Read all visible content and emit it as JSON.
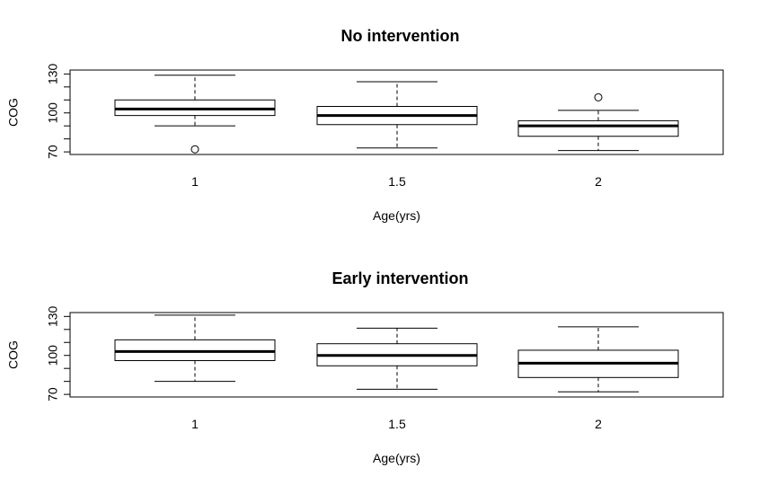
{
  "chart_data": [
    {
      "type": "boxplot",
      "title": "No intervention",
      "xlabel": "Age(yrs)",
      "ylabel": "COG",
      "ylim": [
        70,
        130
      ],
      "yticks": [
        70,
        80,
        90,
        100,
        110,
        120,
        130
      ],
      "ytick_labels": [
        "70",
        "",
        "",
        "100",
        "",
        "",
        "130"
      ],
      "categories": [
        "1",
        "1.5",
        "2"
      ],
      "boxes": [
        {
          "category": "1",
          "whisker_low": 90,
          "q1": 98,
          "median": 103,
          "q3": 110,
          "whisker_high": 129,
          "outliers": [
            72
          ]
        },
        {
          "category": "1.5",
          "whisker_low": 73,
          "q1": 91,
          "median": 98,
          "q3": 105,
          "whisker_high": 124,
          "outliers": []
        },
        {
          "category": "2",
          "whisker_low": 71,
          "q1": 82,
          "median": 90,
          "q3": 94,
          "whisker_high": 102,
          "outliers": [
            112
          ]
        }
      ]
    },
    {
      "type": "boxplot",
      "title": "Early intervention",
      "xlabel": "Age(yrs)",
      "ylabel": "COG",
      "ylim": [
        70,
        130
      ],
      "yticks": [
        70,
        80,
        90,
        100,
        110,
        120,
        130
      ],
      "ytick_labels": [
        "70",
        "",
        "",
        "100",
        "",
        "",
        "130"
      ],
      "categories": [
        "1",
        "1.5",
        "2"
      ],
      "boxes": [
        {
          "category": "1",
          "whisker_low": 80,
          "q1": 96,
          "median": 103,
          "q3": 112,
          "whisker_high": 131,
          "outliers": []
        },
        {
          "category": "1.5",
          "whisker_low": 74,
          "q1": 92,
          "median": 100,
          "q3": 109,
          "whisker_high": 121,
          "outliers": []
        },
        {
          "category": "2",
          "whisker_low": 72,
          "q1": 83,
          "median": 94,
          "q3": 104,
          "whisker_high": 122,
          "outliers": []
        }
      ]
    }
  ]
}
